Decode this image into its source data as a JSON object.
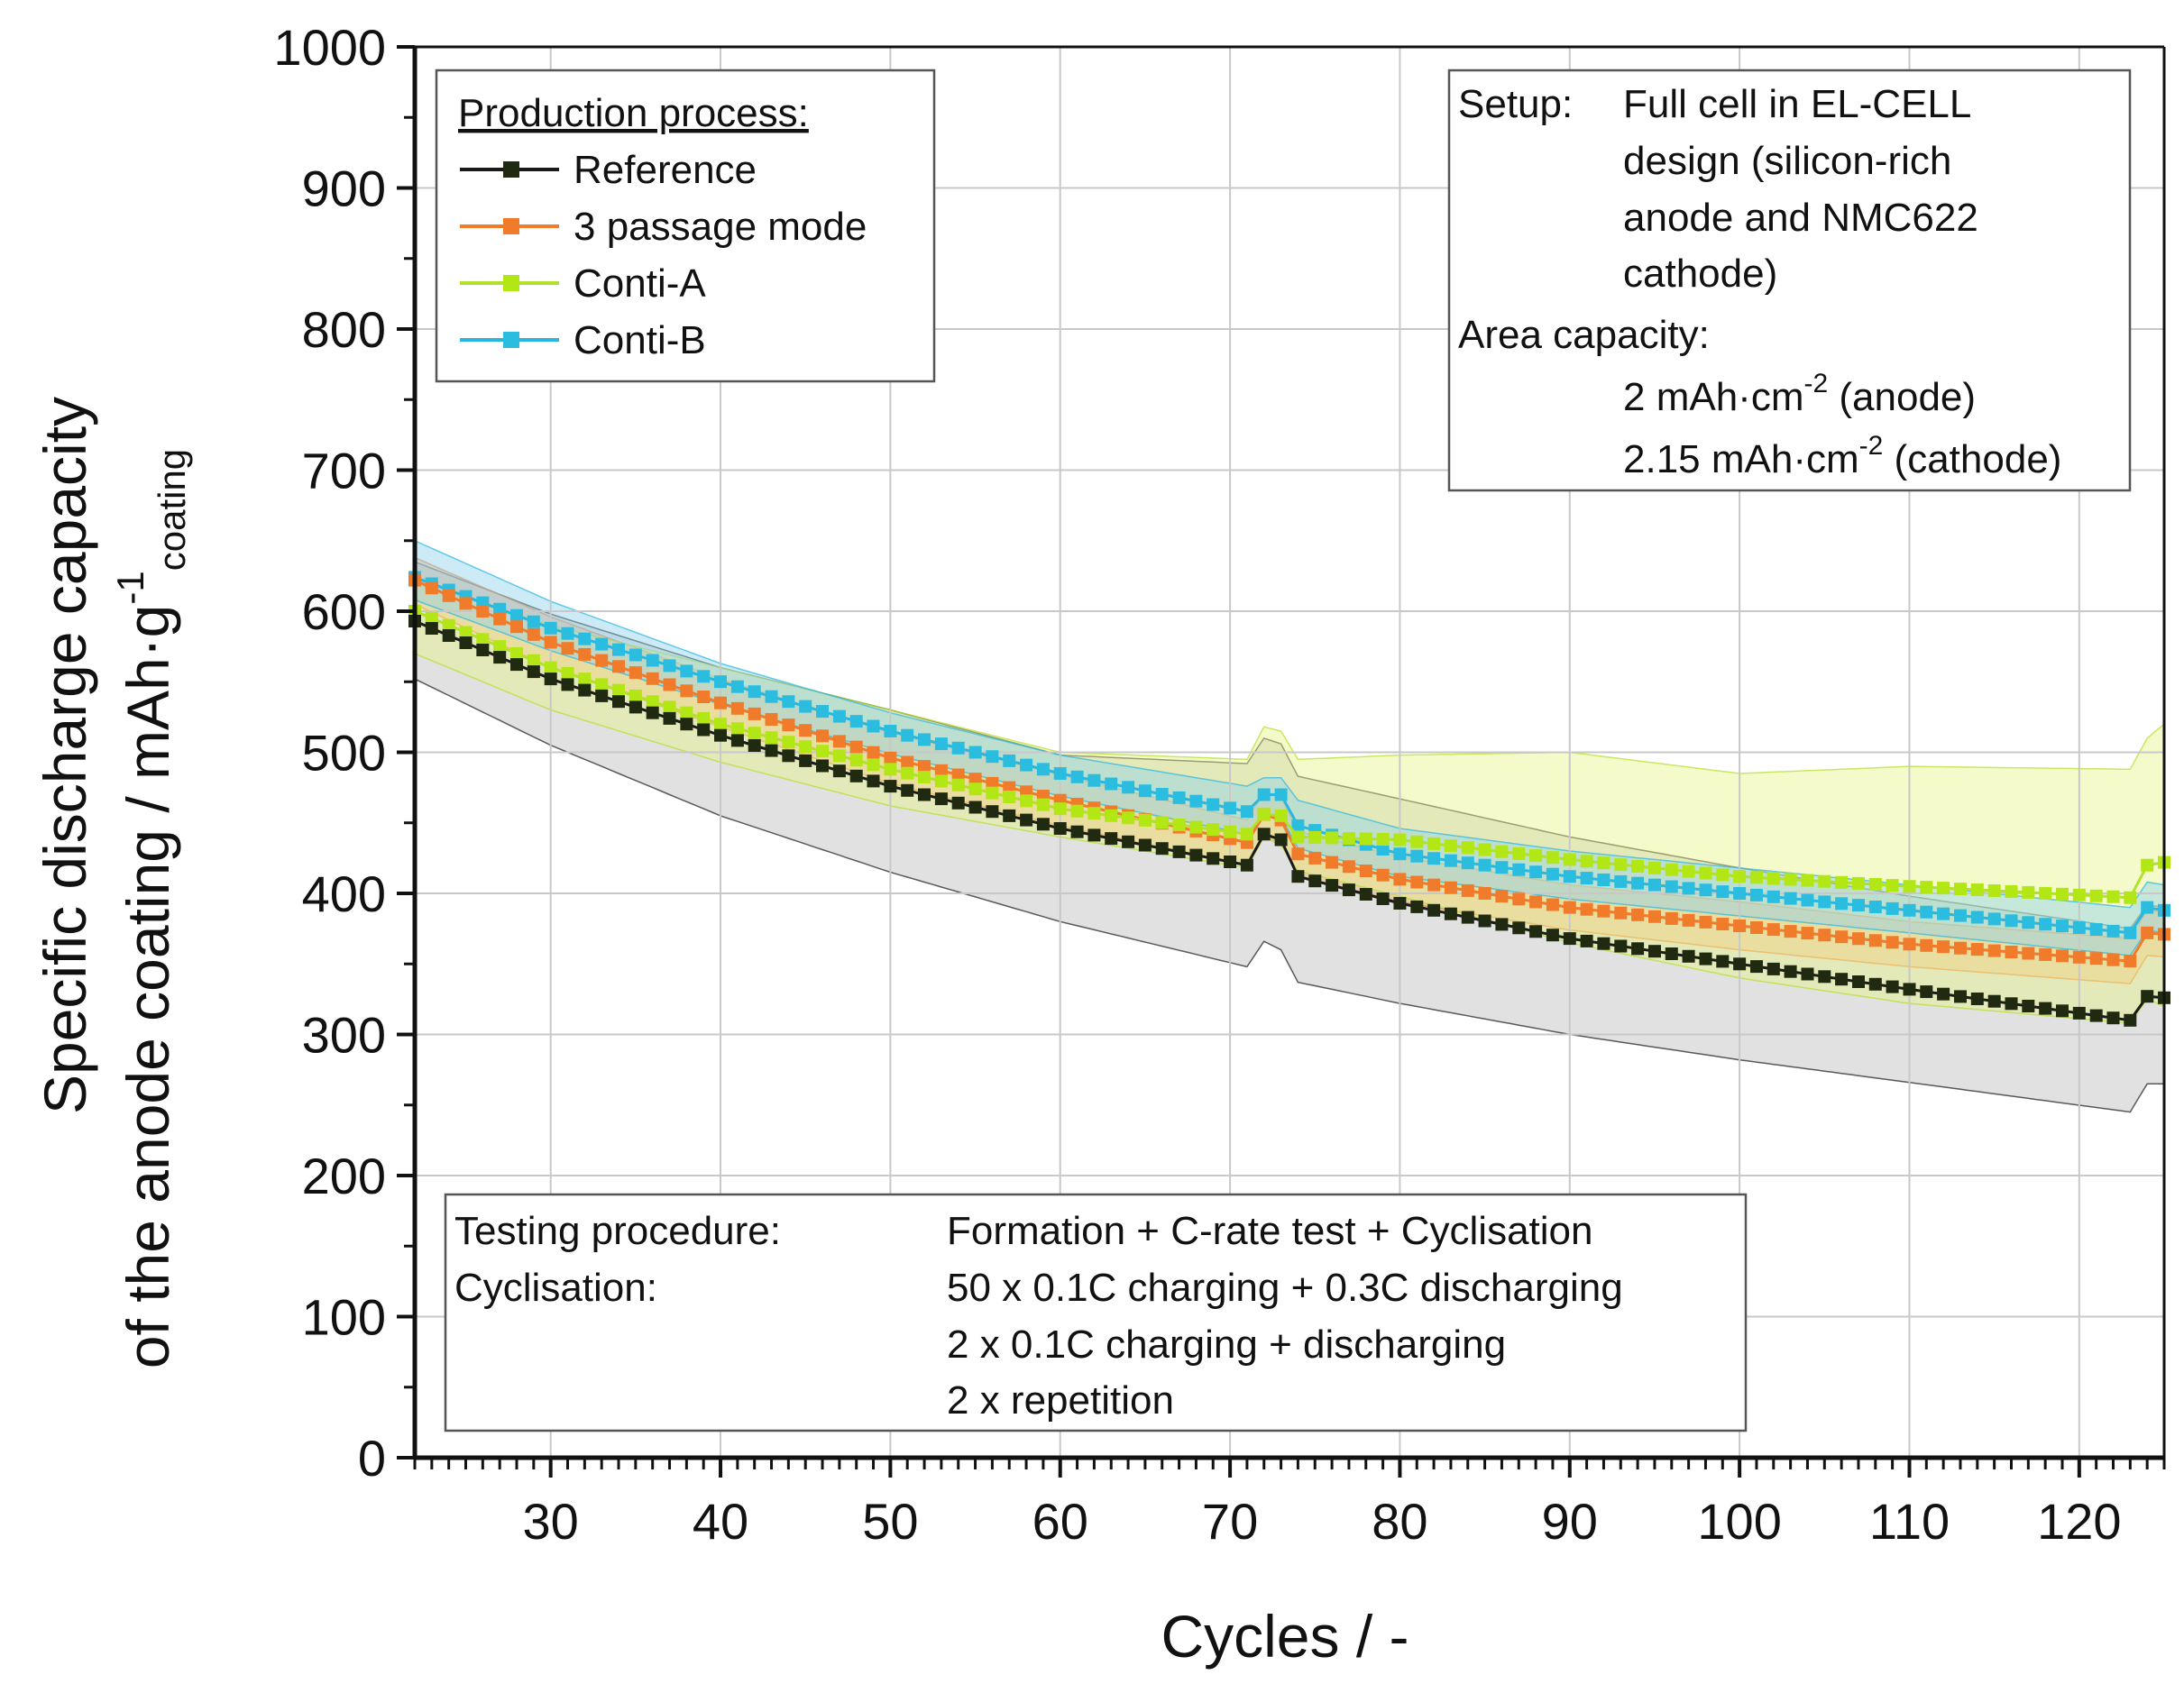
{
  "chart_data": {
    "type": "line",
    "title": "",
    "xlabel": "Cycles / -",
    "ylabel_line1": "Specific discharge capacity",
    "ylabel_line2_main": "of the anode coating / mAh·g",
    "ylabel_sup": "-1",
    "ylabel_sub": "coating",
    "xlim": [
      22,
      125
    ],
    "ylim": [
      0,
      1000
    ],
    "x_ticks": [
      30,
      40,
      50,
      60,
      70,
      80,
      90,
      100,
      110,
      120
    ],
    "y_ticks": [
      0,
      100,
      200,
      300,
      400,
      500,
      600,
      700,
      800,
      900,
      1000
    ],
    "grid": true,
    "legend": {
      "title": "Production process:",
      "position": "top-left"
    },
    "series": [
      {
        "name": "Reference",
        "color": "#1a1a1a",
        "marker_color": "#1f2a10",
        "band_color": "#bdbdbd",
        "anchors_x": [
          22,
          30,
          40,
          50,
          60,
          71,
          72,
          73,
          74,
          80,
          90,
          100,
          110,
          123,
          124,
          125
        ],
        "anchors_mean": [
          593,
          552,
          512,
          476,
          446,
          420,
          442,
          438,
          412,
          393,
          368,
          350,
          332,
          310,
          327,
          326
        ],
        "anchors_lower": [
          552,
          505,
          455,
          415,
          380,
          348,
          366,
          360,
          337,
          322,
          300,
          282,
          266,
          245,
          265,
          265
        ],
        "anchors_upper": [
          635,
          598,
          560,
          530,
          498,
          492,
          510,
          506,
          483,
          467,
          440,
          418,
          398,
          375,
          392,
          390
        ]
      },
      {
        "name": "3 passage mode",
        "color": "#f07b2a",
        "marker_color": "#f07b2a",
        "band_color": "#f4b27a",
        "anchors_x": [
          22,
          30,
          40,
          50,
          60,
          71,
          72,
          73,
          74,
          80,
          90,
          100,
          110,
          123,
          124,
          125
        ],
        "anchors_mean": [
          622,
          578,
          535,
          496,
          466,
          436,
          456,
          452,
          428,
          410,
          390,
          377,
          364,
          352,
          372,
          371
        ],
        "anchors_lower": [
          605,
          560,
          518,
          478,
          448,
          420,
          440,
          436,
          412,
          394,
          374,
          360,
          348,
          336,
          356,
          355
        ],
        "anchors_upper": [
          638,
          596,
          552,
          514,
          484,
          452,
          472,
          468,
          444,
          426,
          406,
          394,
          380,
          368,
          388,
          387
        ]
      },
      {
        "name": "Conti-A",
        "color": "#b2e02c",
        "marker_color": "#b2e615",
        "band_color": "#e8f48a",
        "anchors_x": [
          22,
          30,
          40,
          50,
          60,
          71,
          72,
          73,
          74,
          80,
          90,
          100,
          110,
          123,
          124,
          125
        ],
        "anchors_mean": [
          600,
          560,
          520,
          488,
          460,
          442,
          456,
          455,
          440,
          438,
          424,
          412,
          405,
          397,
          420,
          422
        ],
        "anchors_lower": [
          570,
          530,
          493,
          462,
          440,
          418,
          440,
          434,
          416,
          398,
          365,
          340,
          322,
          308,
          325,
          320
        ],
        "anchors_upper": [
          620,
          590,
          560,
          530,
          500,
          495,
          518,
          515,
          495,
          498,
          500,
          485,
          490,
          488,
          510,
          520
        ]
      },
      {
        "name": "Conti-B",
        "color": "#29b6e0",
        "marker_color": "#2bbde0",
        "band_color": "#8fd3ee",
        "anchors_x": [
          22,
          30,
          40,
          50,
          60,
          71,
          72,
          73,
          74,
          80,
          90,
          100,
          110,
          123,
          124,
          125
        ],
        "anchors_mean": [
          624,
          588,
          550,
          515,
          485,
          458,
          470,
          470,
          448,
          428,
          412,
          400,
          388,
          372,
          390,
          388
        ],
        "anchors_lower": [
          608,
          572,
          534,
          499,
          469,
          442,
          454,
          454,
          432,
          412,
          396,
          384,
          372,
          356,
          374,
          372
        ],
        "anchors_upper": [
          650,
          607,
          563,
          528,
          498,
          476,
          482,
          482,
          466,
          446,
          430,
          418,
          406,
          390,
          408,
          406
        ]
      }
    ],
    "annotations": {
      "setup": {
        "label": "Setup:",
        "lines": [
          "Full cell in EL-CELL",
          "design (silicon-rich",
          "anode and NMC622",
          "cathode)"
        ],
        "area_label": "Area capacity:",
        "area_lines": [
          {
            "pre": "2 mAh·cm",
            "sup": "-2",
            "post": " (anode)"
          },
          {
            "pre": "2.15 mAh·cm",
            "sup": "-2",
            "post": " (cathode)"
          }
        ]
      },
      "procedure": {
        "rows": [
          {
            "label": "Testing procedure:",
            "value": "Formation + C-rate test + Cyclisation"
          },
          {
            "label": "Cyclisation:",
            "value": "50 x 0.1C charging + 0.3C discharging"
          },
          {
            "label": "",
            "value": "2 x 0.1C charging + discharging"
          },
          {
            "label": "",
            "value": "2 x repetition"
          }
        ]
      }
    }
  }
}
